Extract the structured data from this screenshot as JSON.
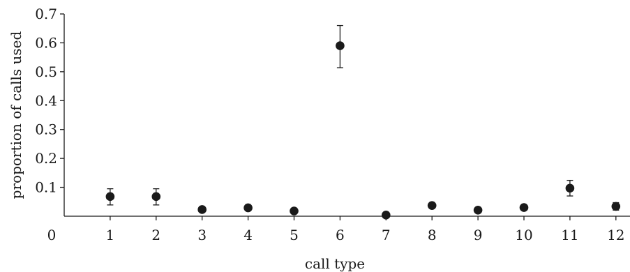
{
  "chart_data": {
    "type": "scatter",
    "title": "",
    "xlabel": "call type",
    "ylabel": "proportion of calls used",
    "x_origin_label": "0",
    "xlim": [
      0,
      12.2
    ],
    "ylim": [
      0,
      0.7
    ],
    "x_ticks": [
      1,
      2,
      3,
      4,
      5,
      6,
      7,
      8,
      9,
      10,
      11,
      12
    ],
    "x_tick_labels": [
      "1",
      "2",
      "3",
      "4",
      "5",
      "6",
      "7",
      "8",
      "9",
      "10",
      "11",
      "12"
    ],
    "y_ticks": [
      0.1,
      0.2,
      0.3,
      0.4,
      0.5,
      0.6,
      0.7
    ],
    "y_tick_labels": [
      "0.1",
      "0.2",
      "0.3",
      "0.4",
      "0.5",
      "0.6",
      "0.7"
    ],
    "grid": false,
    "legend": "none",
    "series": [
      {
        "x": [
          1,
          2,
          3,
          4,
          5,
          6,
          7,
          8,
          9,
          10,
          11,
          12
        ],
        "y": [
          0.068,
          0.068,
          0.023,
          0.029,
          0.018,
          0.59,
          0.004,
          0.037,
          0.021,
          0.03,
          0.097,
          0.034
        ],
        "err_low": [
          0.039,
          0.039,
          0.02,
          0.026,
          0.015,
          0.514,
          0.002,
          0.03,
          0.018,
          0.026,
          0.07,
          0.021
        ],
        "err_high": [
          0.095,
          0.095,
          0.026,
          0.032,
          0.021,
          0.66,
          0.006,
          0.044,
          0.024,
          0.034,
          0.124,
          0.047
        ]
      }
    ]
  }
}
